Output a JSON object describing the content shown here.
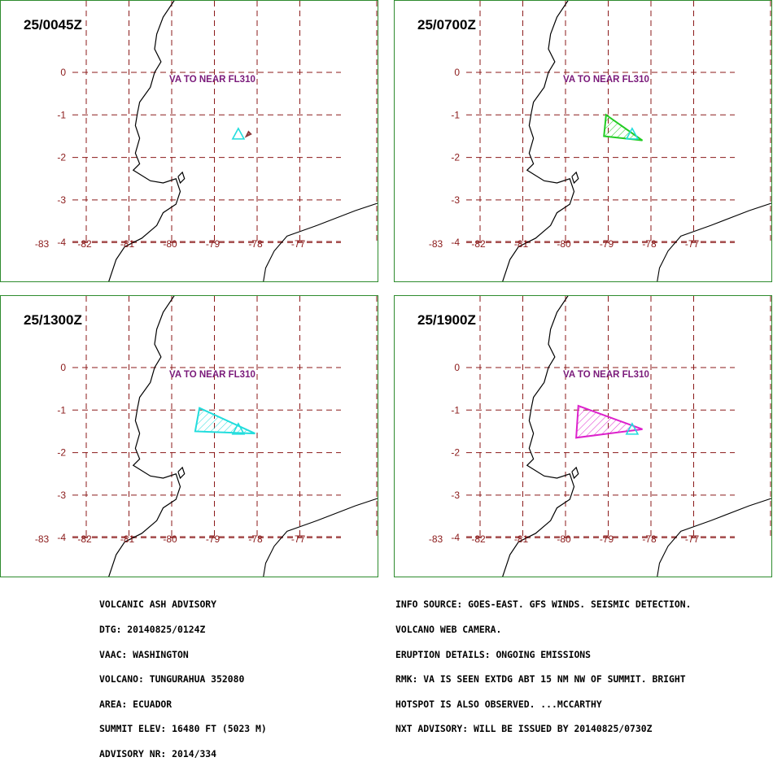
{
  "panels": [
    {
      "time": "25/0045Z",
      "label": "VA TO NEAR FL310",
      "cloud_color": "#8b3a3a",
      "cloud_area": [
        [
          -78.2,
          -1.4
        ],
        [
          -78.15,
          -1.45
        ],
        [
          -78.25,
          -1.5
        ]
      ]
    },
    {
      "time": "25/0700Z",
      "label": "VA TO NEAR FL310",
      "cloud_color": "#22cc22",
      "cloud_area": [
        [
          -79.05,
          -1.0
        ],
        [
          -78.2,
          -1.6
        ],
        [
          -79.1,
          -1.5
        ]
      ]
    },
    {
      "time": "25/1300Z",
      "label": "VA TO NEAR FL310",
      "cloud_color": "#22dddd",
      "cloud_area": [
        [
          -79.35,
          -0.95
        ],
        [
          -78.05,
          -1.55
        ],
        [
          -79.45,
          -1.5
        ]
      ]
    },
    {
      "time": "25/1900Z",
      "label": "VA TO NEAR FL310",
      "cloud_color": "#dd22cc",
      "cloud_area": [
        [
          -79.7,
          -0.9
        ],
        [
          -78.2,
          -1.45
        ],
        [
          -79.75,
          -1.65
        ]
      ]
    }
  ],
  "volcano": {
    "lon": -78.44,
    "lat": -1.47,
    "color": "#22dddd"
  },
  "grid": {
    "lon_labels": [
      "-83",
      "-82",
      "-81",
      "-80",
      "-79",
      "-78",
      "-77"
    ],
    "lat_labels": [
      "0",
      "-1",
      "-2",
      "-3",
      "-4"
    ],
    "line_color": "#8b1a1a",
    "label_color": "#8b1a1a"
  },
  "colors": {
    "label": "#7a1a7a",
    "panel_border": "#2e8b2e"
  },
  "advisory_left": [
    "VOLCANIC ASH ADVISORY",
    "DTG: 20140825/0124Z",
    "VAAC: WASHINGTON",
    "VOLCANO: TUNGURAHUA 352080",
    "AREA: ECUADOR",
    "SUMMIT ELEV: 16480 FT (5023 M)",
    "ADVISORY NR: 2014/334"
  ],
  "advisory_right": [
    "INFO SOURCE: GOES-EAST. GFS WINDS. SEISMIC DETECTION.",
    "VOLCANO WEB CAMERA.",
    "ERUPTION DETAILS: ONGOING EMISSIONS",
    "RMK: VA IS SEEN EXTDG ABT 15 NM NW OF SUMMIT. BRIGHT",
    "HOTSPOT IS ALSO OBSERVED. ...MCCARTHY",
    "NXT ADVISORY: WILL BE ISSUED BY 20140825/0730Z"
  ]
}
